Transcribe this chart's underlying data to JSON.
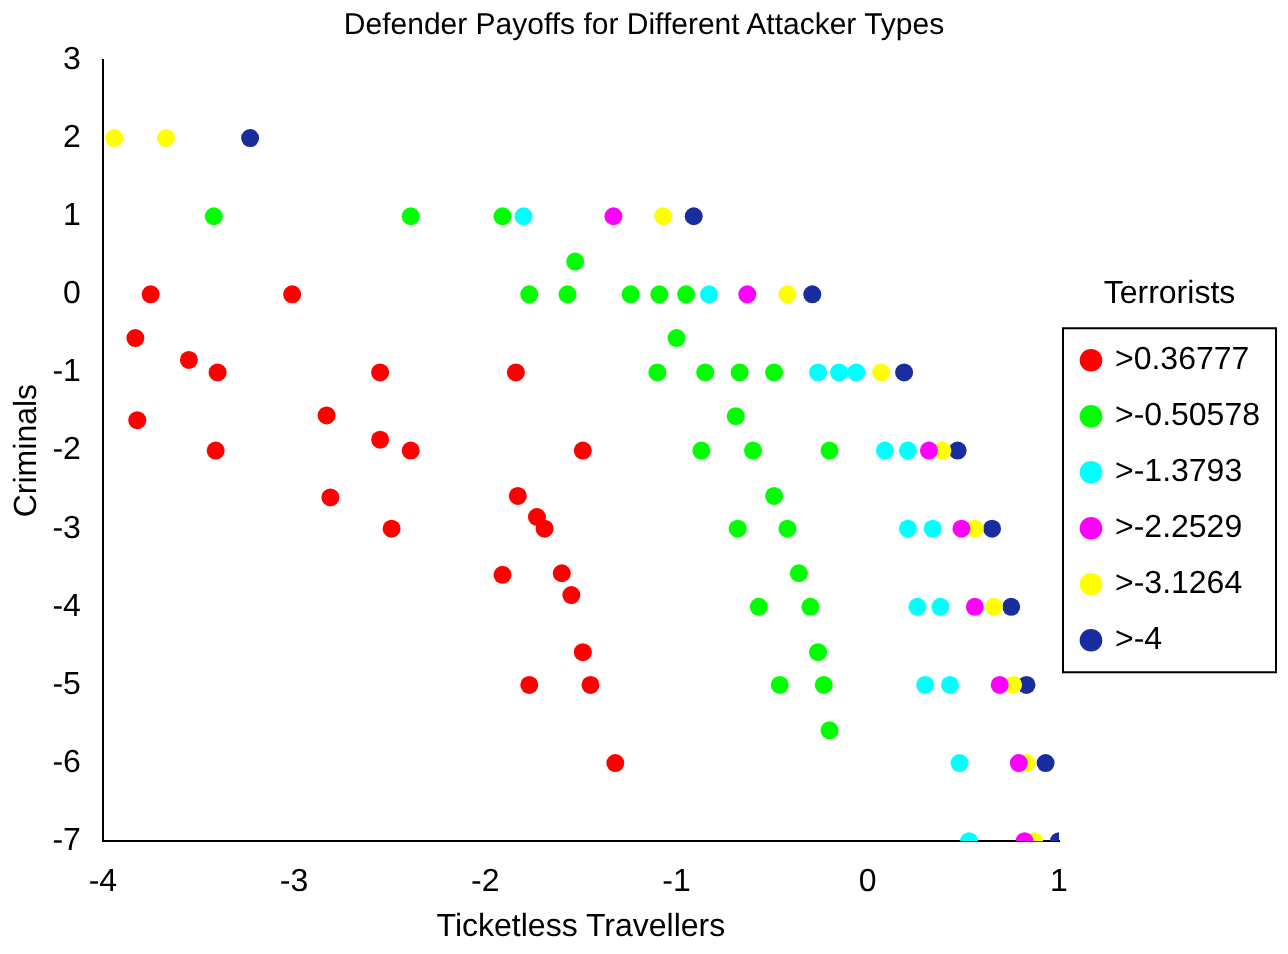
{
  "chart_data": {
    "type": "scatter",
    "title": "Defender Payoffs for Different Attacker Types",
    "xlabel": "Ticketless Travellers",
    "ylabel": "Criminals",
    "legend_title": "Terrorists",
    "legend": "right",
    "grid": false,
    "marker": "circle",
    "xlim": [
      -4,
      1
    ],
    "xticks": [
      -4,
      -3,
      -2,
      -1,
      0,
      1
    ],
    "ylim": [
      -7,
      3
    ],
    "yticks": [
      -7,
      -6,
      -5,
      -4,
      -3,
      -2,
      -1,
      0,
      1,
      2,
      3
    ],
    "series": [
      {
        "name": ">0.36777",
        "color": "#ff0000",
        "x": [
          -3.75,
          -3.83,
          -3.55,
          -3.4,
          -3.82,
          -3.41,
          -3.01,
          -2.83,
          -2.55,
          -2.55,
          -2.39,
          -1.84,
          -2.81,
          -2.49,
          -1.83,
          -1.73,
          -1.69,
          -1.91,
          -1.6,
          -1.55,
          -1.77,
          -1.49,
          -1.49,
          -1.45,
          -1.32
        ],
        "values": [
          0,
          -0.56,
          -0.84,
          -1,
          -1.61,
          -2,
          0,
          -1.55,
          -1,
          -1.86,
          -2,
          -1,
          -2.6,
          -3,
          -2.58,
          -2.85,
          -3,
          -3.59,
          -3.57,
          -3.85,
          -5,
          -2,
          -4.58,
          -5,
          -6
        ]
      },
      {
        "name": ">-0.50578",
        "color": "#00ff00",
        "x": [
          -3.42,
          -2.39,
          -1.91,
          -1.77,
          -1.57,
          -1.53,
          -1.24,
          -1.09,
          -0.95,
          -1.0,
          -1.1,
          -0.85,
          -0.67,
          -0.49,
          -0.69,
          -0.87,
          -0.6,
          -0.2,
          -0.49,
          -0.68,
          -0.42,
          -0.36,
          -0.57,
          -0.3,
          -0.26,
          -0.46,
          -0.23,
          -0.2
        ],
        "values": [
          1,
          1,
          1,
          0,
          0,
          0.42,
          0,
          0,
          0,
          -0.56,
          -1,
          -1,
          -1,
          -1,
          -1.56,
          -2,
          -2,
          -2,
          -2.58,
          -3,
          -3,
          -3.57,
          -4,
          -4,
          -4.58,
          -5,
          -5,
          -5.58
        ]
      },
      {
        "name": ">-1.3793",
        "color": "#00ffff",
        "x": [
          -1.8,
          -0.83,
          -0.26,
          -0.15,
          -0.06,
          0.09,
          0.21,
          0.21,
          0.34,
          0.26,
          0.38,
          0.3,
          0.43,
          0.48,
          0.53
        ],
        "values": [
          1,
          0,
          -1,
          -1,
          -1,
          -2,
          -2,
          -3,
          -3,
          -4,
          -4,
          -5,
          -5,
          -6,
          -7
        ]
      },
      {
        "name": ">-2.2529",
        "color": "#ff00ff",
        "x": [
          -1.33,
          -0.63,
          0.32,
          0.49,
          0.56,
          0.69,
          0.79,
          0.82
        ],
        "values": [
          1,
          0,
          -2,
          -3,
          -4,
          -5,
          -6,
          -7
        ]
      },
      {
        "name": ">-3.1264",
        "color": "#ffff00",
        "x": [
          -3.94,
          -3.67,
          -1.07,
          -0.42,
          0.07,
          0.39,
          0.56,
          0.66,
          0.76,
          0.83,
          0.87
        ],
        "values": [
          2,
          2,
          1,
          0,
          -1,
          -2,
          -3,
          -4,
          -5,
          -6,
          -7
        ]
      },
      {
        "name": ">-4",
        "color": "#1a2d9e",
        "x": [
          -3.23,
          -0.91,
          -0.29,
          0.19,
          0.47,
          0.65,
          0.75,
          0.83,
          0.93,
          1.0
        ],
        "values": [
          2,
          1,
          0,
          -1,
          -2,
          -3,
          -4,
          -5,
          -6,
          -7
        ]
      }
    ]
  }
}
